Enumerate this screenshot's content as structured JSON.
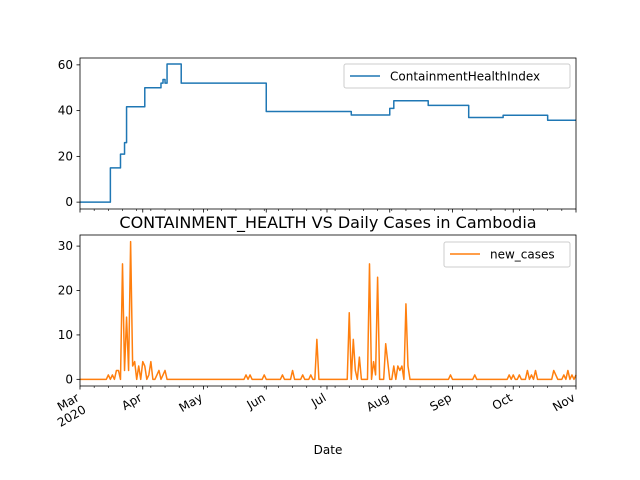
{
  "chart_data": [
    {
      "type": "line",
      "title": "",
      "xlabel": "",
      "ylabel": "",
      "xlim": [
        "2020-03-01",
        "2020-11-01"
      ],
      "ylim": [
        -3,
        63
      ],
      "yticks": [
        0,
        20,
        40,
        60
      ],
      "grid": false,
      "legend_placement": "top-right",
      "series": [
        {
          "name": "ContainmentHealthIndex",
          "color": "#1f77b4",
          "step": true,
          "points": [
            [
              "2020-03-01",
              0
            ],
            [
              "2020-03-16",
              0
            ],
            [
              "2020-03-16",
              15
            ],
            [
              "2020-03-21",
              15
            ],
            [
              "2020-03-21",
              21
            ],
            [
              "2020-03-23",
              21
            ],
            [
              "2020-03-23",
              26
            ],
            [
              "2020-03-24",
              26
            ],
            [
              "2020-03-24",
              41.7
            ],
            [
              "2020-04-02",
              41.7
            ],
            [
              "2020-04-02",
              50
            ],
            [
              "2020-04-10",
              50
            ],
            [
              "2020-04-10",
              52
            ],
            [
              "2020-04-11",
              52
            ],
            [
              "2020-04-11",
              53.6
            ],
            [
              "2020-04-12",
              53.6
            ],
            [
              "2020-04-12",
              52
            ],
            [
              "2020-04-13",
              52
            ],
            [
              "2020-04-13",
              60.4
            ],
            [
              "2020-04-20",
              60.4
            ],
            [
              "2020-04-20",
              52
            ],
            [
              "2020-06-01",
              52
            ],
            [
              "2020-06-01",
              39.6
            ],
            [
              "2020-07-13",
              39.6
            ],
            [
              "2020-07-13",
              38.1
            ],
            [
              "2020-08-01",
              38.1
            ],
            [
              "2020-08-01",
              41
            ],
            [
              "2020-08-03",
              41
            ],
            [
              "2020-08-03",
              44.3
            ],
            [
              "2020-08-20",
              44.3
            ],
            [
              "2020-08-20",
              42.3
            ],
            [
              "2020-09-09",
              42.3
            ],
            [
              "2020-09-09",
              37
            ],
            [
              "2020-09-26",
              37
            ],
            [
              "2020-09-26",
              38
            ],
            [
              "2020-10-18",
              38
            ],
            [
              "2020-10-18",
              35.8
            ],
            [
              "2020-11-01",
              35.8
            ]
          ]
        }
      ]
    },
    {
      "type": "line",
      "title": "CONTAINMENT_HEALTH VS Daily Cases in Cambodia",
      "xlabel": "Date",
      "ylabel": "",
      "xlim": [
        "2020-03-01",
        "2020-11-01"
      ],
      "ylim": [
        -1.5,
        32.5
      ],
      "yticks": [
        0,
        10,
        20,
        30
      ],
      "grid": false,
      "legend_placement": "top-right",
      "xtick_labels": [
        {
          "date": "2020-03-01",
          "lines": [
            "Mar",
            "2020"
          ]
        },
        {
          "date": "2020-04-01",
          "lines": [
            "Apr"
          ]
        },
        {
          "date": "2020-05-01",
          "lines": [
            "May"
          ]
        },
        {
          "date": "2020-06-01",
          "lines": [
            "Jun"
          ]
        },
        {
          "date": "2020-07-01",
          "lines": [
            "Jul"
          ]
        },
        {
          "date": "2020-08-01",
          "lines": [
            "Aug"
          ]
        },
        {
          "date": "2020-09-01",
          "lines": [
            "Sep"
          ]
        },
        {
          "date": "2020-10-01",
          "lines": [
            "Oct"
          ]
        },
        {
          "date": "2020-11-01",
          "lines": [
            "Nov"
          ]
        }
      ],
      "series": [
        {
          "name": "new_cases",
          "color": "#ff7f0e",
          "points": [
            [
              "2020-03-01",
              0
            ],
            [
              "2020-03-14",
              0
            ],
            [
              "2020-03-15",
              1
            ],
            [
              "2020-03-16",
              0
            ],
            [
              "2020-03-17",
              1
            ],
            [
              "2020-03-18",
              0
            ],
            [
              "2020-03-19",
              2
            ],
            [
              "2020-03-20",
              2
            ],
            [
              "2020-03-21",
              0
            ],
            [
              "2020-03-22",
              26
            ],
            [
              "2020-03-23",
              2
            ],
            [
              "2020-03-24",
              14
            ],
            [
              "2020-03-25",
              2
            ],
            [
              "2020-03-26",
              31
            ],
            [
              "2020-03-27",
              3
            ],
            [
              "2020-03-28",
              4
            ],
            [
              "2020-03-29",
              0
            ],
            [
              "2020-03-30",
              3
            ],
            [
              "2020-03-31",
              0
            ],
            [
              "2020-04-01",
              4
            ],
            [
              "2020-04-02",
              3
            ],
            [
              "2020-04-03",
              0
            ],
            [
              "2020-04-04",
              1
            ],
            [
              "2020-04-05",
              4
            ],
            [
              "2020-04-06",
              0
            ],
            [
              "2020-04-07",
              0
            ],
            [
              "2020-04-08",
              1
            ],
            [
              "2020-04-09",
              2
            ],
            [
              "2020-04-10",
              0
            ],
            [
              "2020-04-11",
              1
            ],
            [
              "2020-04-12",
              2
            ],
            [
              "2020-04-13",
              0
            ],
            [
              "2020-05-21",
              0
            ],
            [
              "2020-05-22",
              1
            ],
            [
              "2020-05-23",
              0
            ],
            [
              "2020-05-24",
              1
            ],
            [
              "2020-05-25",
              0
            ],
            [
              "2020-05-30",
              0
            ],
            [
              "2020-05-31",
              1
            ],
            [
              "2020-06-01",
              0
            ],
            [
              "2020-06-08",
              0
            ],
            [
              "2020-06-09",
              1
            ],
            [
              "2020-06-10",
              0
            ],
            [
              "2020-06-13",
              0
            ],
            [
              "2020-06-14",
              2
            ],
            [
              "2020-06-15",
              0
            ],
            [
              "2020-06-18",
              0
            ],
            [
              "2020-06-19",
              1
            ],
            [
              "2020-06-20",
              0
            ],
            [
              "2020-06-22",
              0
            ],
            [
              "2020-06-23",
              1
            ],
            [
              "2020-06-24",
              0
            ],
            [
              "2020-06-25",
              0
            ],
            [
              "2020-06-26",
              9
            ],
            [
              "2020-06-27",
              0
            ],
            [
              "2020-07-11",
              0
            ],
            [
              "2020-07-12",
              15
            ],
            [
              "2020-07-13",
              0
            ],
            [
              "2020-07-14",
              9
            ],
            [
              "2020-07-15",
              2
            ],
            [
              "2020-07-16",
              0
            ],
            [
              "2020-07-17",
              5
            ],
            [
              "2020-07-18",
              0
            ],
            [
              "2020-07-21",
              0
            ],
            [
              "2020-07-22",
              26
            ],
            [
              "2020-07-23",
              0
            ],
            [
              "2020-07-24",
              4
            ],
            [
              "2020-07-25",
              1
            ],
            [
              "2020-07-26",
              23
            ],
            [
              "2020-07-27",
              0
            ],
            [
              "2020-07-29",
              0
            ],
            [
              "2020-07-30",
              8
            ],
            [
              "2020-07-31",
              4
            ],
            [
              "2020-08-01",
              0
            ],
            [
              "2020-08-02",
              0
            ],
            [
              "2020-08-03",
              3
            ],
            [
              "2020-08-04",
              0
            ],
            [
              "2020-08-05",
              3
            ],
            [
              "2020-08-06",
              2
            ],
            [
              "2020-08-07",
              3
            ],
            [
              "2020-08-08",
              0
            ],
            [
              "2020-08-09",
              17
            ],
            [
              "2020-08-10",
              3
            ],
            [
              "2020-08-11",
              0
            ],
            [
              "2020-08-30",
              0
            ],
            [
              "2020-08-31",
              1
            ],
            [
              "2020-09-01",
              0
            ],
            [
              "2020-09-11",
              0
            ],
            [
              "2020-09-12",
              1
            ],
            [
              "2020-09-13",
              0
            ],
            [
              "2020-09-28",
              0
            ],
            [
              "2020-09-29",
              1
            ],
            [
              "2020-09-30",
              0
            ],
            [
              "2020-10-01",
              1
            ],
            [
              "2020-10-02",
              0
            ],
            [
              "2020-10-03",
              0
            ],
            [
              "2020-10-04",
              1
            ],
            [
              "2020-10-05",
              0
            ],
            [
              "2020-10-07",
              0
            ],
            [
              "2020-10-08",
              2
            ],
            [
              "2020-10-09",
              0
            ],
            [
              "2020-10-10",
              1
            ],
            [
              "2020-10-11",
              0
            ],
            [
              "2020-10-12",
              2
            ],
            [
              "2020-10-13",
              0
            ],
            [
              "2020-10-20",
              0
            ],
            [
              "2020-10-21",
              2
            ],
            [
              "2020-10-22",
              1
            ],
            [
              "2020-10-23",
              0
            ],
            [
              "2020-10-25",
              0
            ],
            [
              "2020-10-26",
              1
            ],
            [
              "2020-10-27",
              0
            ],
            [
              "2020-10-28",
              2
            ],
            [
              "2020-10-29",
              0
            ],
            [
              "2020-10-30",
              1
            ],
            [
              "2020-10-31",
              0
            ],
            [
              "2020-11-01",
              1
            ]
          ]
        }
      ]
    }
  ]
}
